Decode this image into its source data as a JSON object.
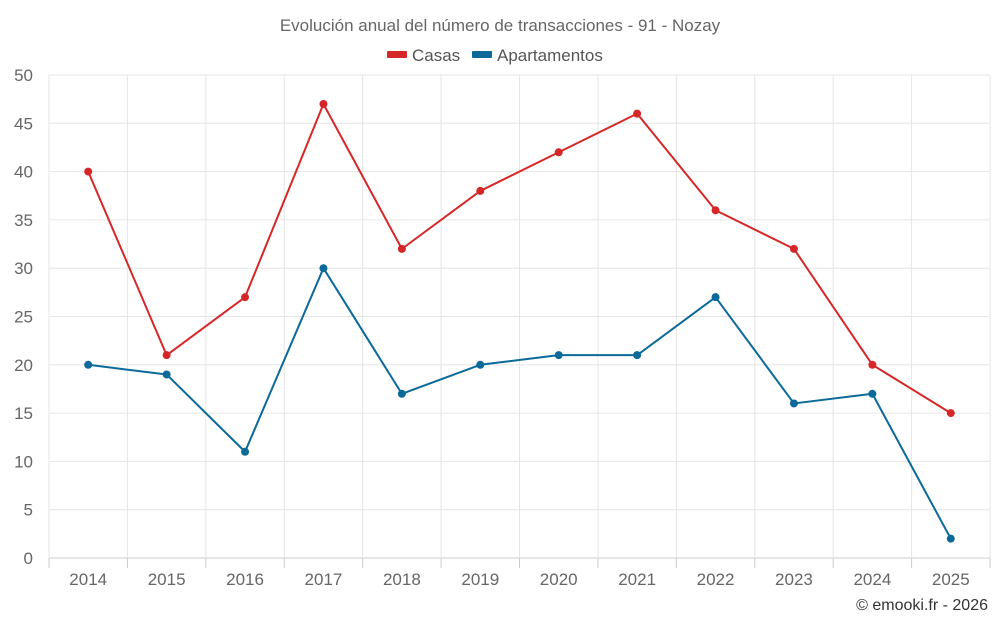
{
  "chart_data": {
    "type": "line",
    "title": "Evolución anual del número de transacciones - 91 - Nozay",
    "categories": [
      "2014",
      "2015",
      "2016",
      "2017",
      "2018",
      "2019",
      "2020",
      "2021",
      "2022",
      "2023",
      "2024",
      "2025"
    ],
    "series": [
      {
        "name": "Casas",
        "color": "#d62728",
        "values": [
          40,
          21,
          27,
          47,
          32,
          38,
          42,
          46,
          36,
          32,
          20,
          15
        ]
      },
      {
        "name": "Apartamentos",
        "color": "#0b6a9a",
        "values": [
          20,
          19,
          11,
          30,
          17,
          20,
          21,
          21,
          27,
          16,
          17,
          2
        ]
      }
    ],
    "ylim": [
      0,
      50
    ],
    "yticks": [
      0,
      5,
      10,
      15,
      20,
      25,
      30,
      35,
      40,
      45,
      50
    ],
    "xlabel": "",
    "ylabel": "",
    "legend_position": "top-center",
    "grid": true
  },
  "credit": "© emooki.fr - 2026"
}
